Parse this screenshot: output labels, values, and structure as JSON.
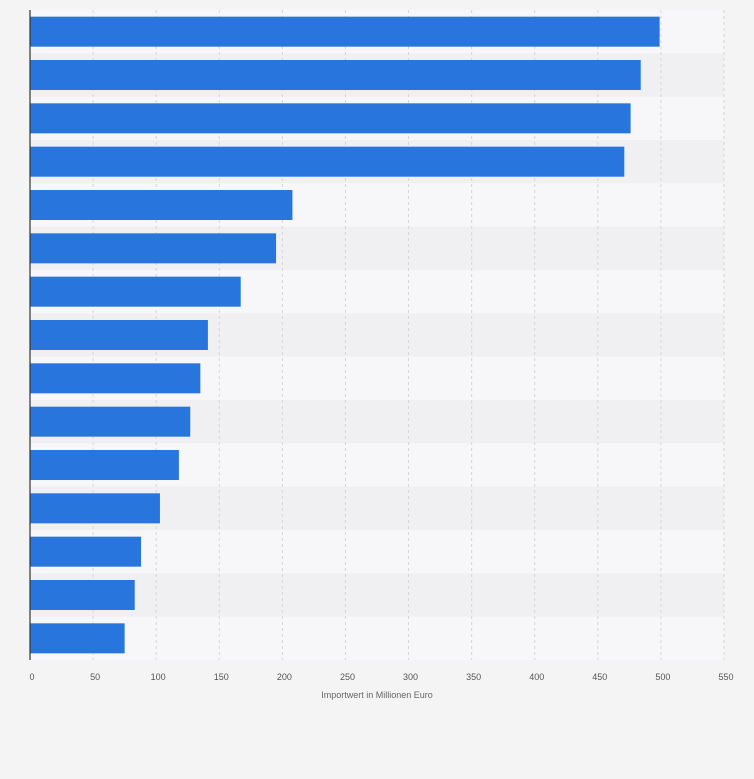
{
  "chart_data": {
    "type": "bar",
    "orientation": "horizontal",
    "categories": [
      "",
      "",
      "",
      "",
      "",
      "",
      "",
      "",
      "",
      "",
      "",
      "",
      "",
      "",
      ""
    ],
    "values": [
      499,
      484,
      476,
      471,
      208,
      195,
      167,
      141,
      135,
      127,
      118,
      103,
      88,
      83,
      75
    ],
    "title": "",
    "xlabel": "Importwert in Millionen Euro",
    "ylabel": "",
    "xlim": [
      0,
      550
    ],
    "x_ticks": [
      "0",
      "50",
      "100",
      "150",
      "200",
      "250",
      "300",
      "350",
      "400",
      "450",
      "500",
      "550"
    ],
    "grid": true,
    "legend": "none",
    "colors": {
      "bar": "#2876dd",
      "band_light": "#f7f7f9",
      "band_dark": "#f0f0f2",
      "gridline": "#d6d6d6",
      "axis": "#333333",
      "background": "#f4f4f5"
    }
  }
}
